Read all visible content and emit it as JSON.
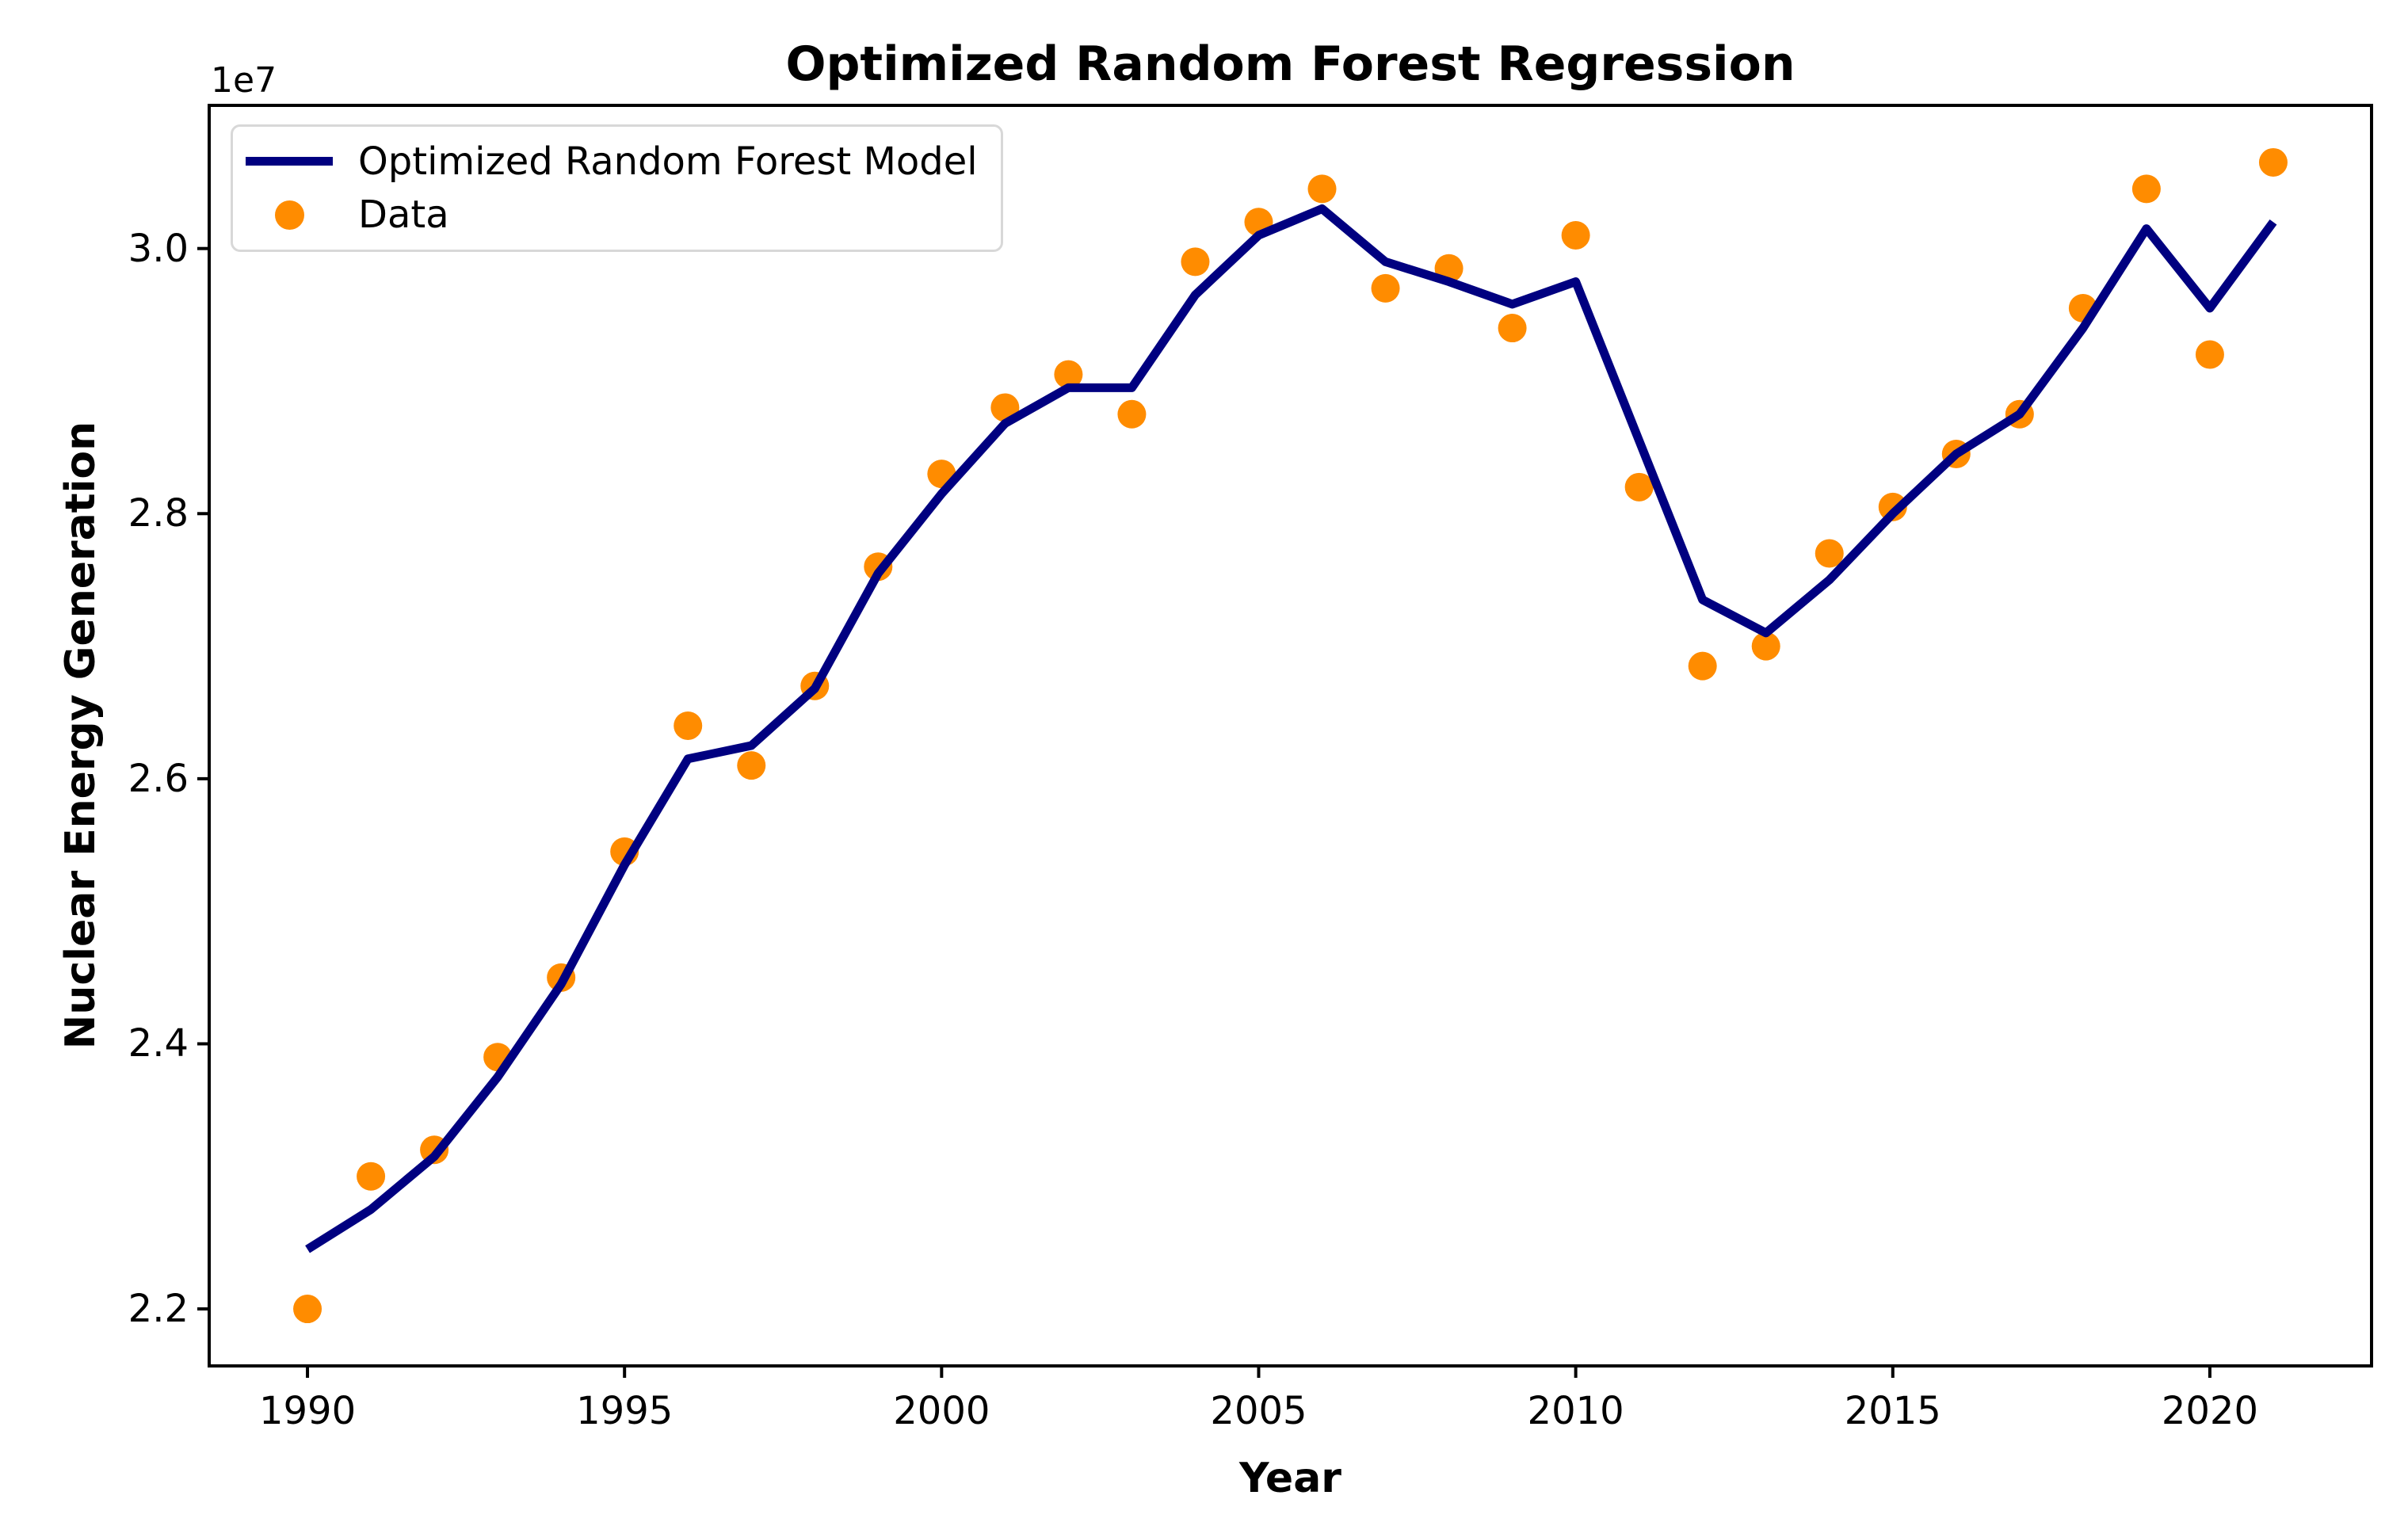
{
  "figure": {
    "title": "Optimized Random Forest Regression",
    "xlabel": "Year",
    "ylabel": "Nuclear Energy Generation",
    "offset_text": "1e7",
    "colors": {
      "model_line": "#000080",
      "data_points": "#FF8C00",
      "axes": "#000000",
      "legend_border": "#d8d8d8"
    },
    "legend": {
      "position": "upper left",
      "items": [
        {
          "label": "Optimized Random Forest Model",
          "marker": "line",
          "color": "#000080"
        },
        {
          "label": "Data",
          "marker": "dot",
          "color": "#FF8C00"
        }
      ]
    }
  },
  "chart_data": {
    "type": "line",
    "title": "Optimized Random Forest Regression",
    "xlabel": "Year",
    "ylabel": "Nuclear Energy Generation",
    "y_unit_multiplier": 10000000,
    "grid": false,
    "legend_position": "upper left",
    "xlim": [
      1988.45,
      2022.55
    ],
    "ylim": [
      2.157,
      3.108
    ],
    "xticks": [
      1990,
      1995,
      2000,
      2005,
      2010,
      2015,
      2020
    ],
    "xticklabels": [
      "1990",
      "1995",
      "2000",
      "2005",
      "2010",
      "2015",
      "2020"
    ],
    "yticks": [
      2.2,
      2.4,
      2.6,
      2.8,
      3.0
    ],
    "yticklabels": [
      "2.2",
      "2.4",
      "2.6",
      "2.8",
      "3.0"
    ],
    "x": [
      1990,
      1991,
      1992,
      1993,
      1994,
      1995,
      1996,
      1997,
      1998,
      1999,
      2000,
      2001,
      2002,
      2003,
      2004,
      2005,
      2006,
      2007,
      2008,
      2009,
      2010,
      2011,
      2012,
      2013,
      2014,
      2015,
      2016,
      2017,
      2018,
      2019,
      2020,
      2021
    ],
    "series": [
      {
        "name": "Data",
        "type": "scatter",
        "color": "#FF8C00",
        "marker_radius": 18,
        "values": [
          2.2,
          2.3,
          2.32,
          2.39,
          2.45,
          2.545,
          2.64,
          2.61,
          2.67,
          2.76,
          2.83,
          2.88,
          2.905,
          2.875,
          2.99,
          3.02,
          3.045,
          2.97,
          2.985,
          2.94,
          3.01,
          2.82,
          2.685,
          2.7,
          2.77,
          2.805,
          2.845,
          2.875,
          2.955,
          3.045,
          2.92,
          3.065
        ]
      },
      {
        "name": "Optimized Random Forest Model",
        "type": "line",
        "color": "#000080",
        "line_width": 11,
        "values": [
          2.245,
          2.275,
          2.315,
          2.375,
          2.445,
          2.535,
          2.615,
          2.625,
          2.668,
          2.755,
          2.815,
          2.868,
          2.895,
          2.895,
          2.965,
          3.01,
          3.03,
          2.99,
          2.975,
          2.958,
          2.975,
          2.855,
          2.735,
          2.71,
          2.75,
          2.8,
          2.845,
          2.875,
          2.94,
          3.015,
          2.955,
          3.02
        ]
      }
    ]
  }
}
